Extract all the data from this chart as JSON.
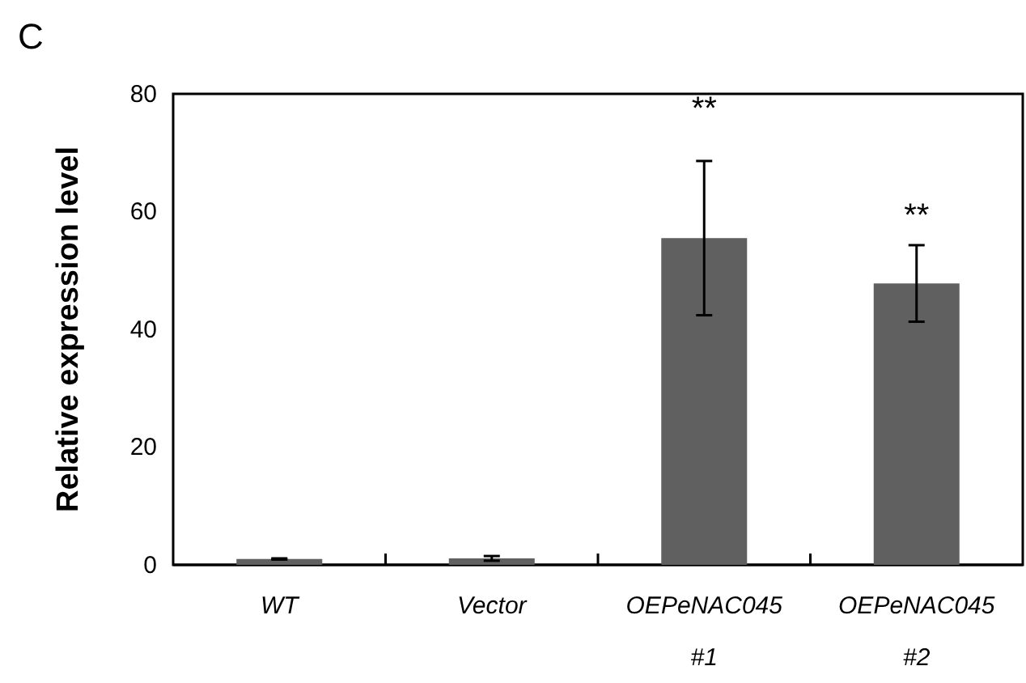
{
  "chart_data": {
    "type": "bar",
    "title": "C",
    "ylabel": "Relative expression level",
    "categories": [
      "WT",
      "Vector",
      "OEPeNAC045 #1",
      "OEPeNAC045 #2"
    ],
    "values": [
      1.0,
      1.1,
      55.5,
      47.8
    ],
    "errors": [
      0.1,
      0.4,
      13.1,
      6.5
    ],
    "color": "#606060",
    "ylim": [
      0,
      80
    ],
    "yticks": [
      0,
      20,
      40,
      60,
      80
    ],
    "annotations": [
      "**",
      "**"
    ]
  }
}
